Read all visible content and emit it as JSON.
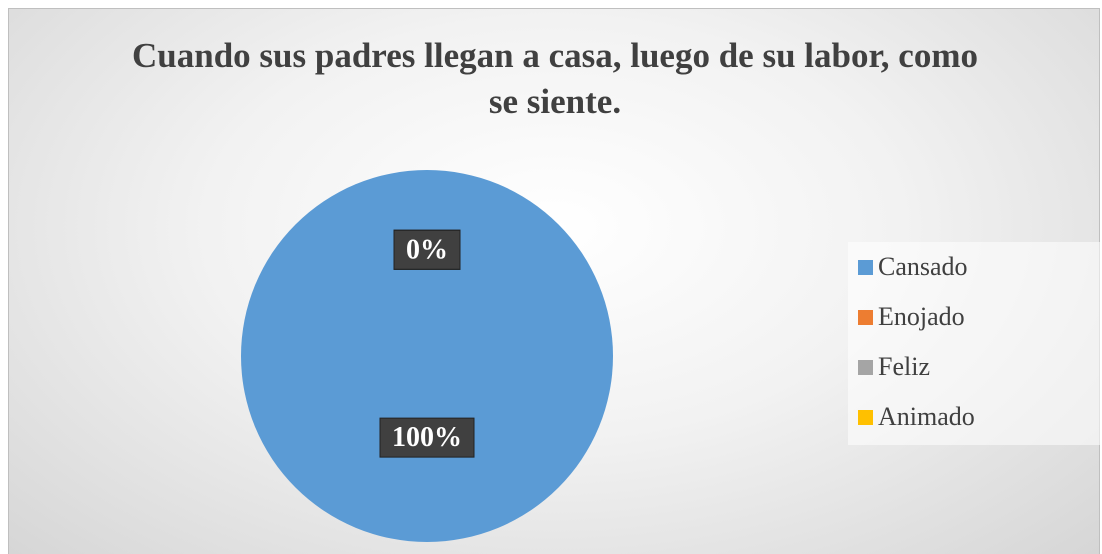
{
  "chart_data": {
    "type": "pie",
    "title": "Cuando sus padres llegan a casa, luego de su labor, como se siente.",
    "categories": [
      "Cansado",
      "Enojado",
      "Feliz",
      "Animado"
    ],
    "values": [
      100,
      0,
      0,
      0
    ],
    "value_labels": [
      "100%",
      "0%",
      "0%",
      "0%"
    ],
    "colors": [
      "#5b9bd5",
      "#ed7d31",
      "#a5a5a5",
      "#ffc000"
    ],
    "legend": "right"
  }
}
